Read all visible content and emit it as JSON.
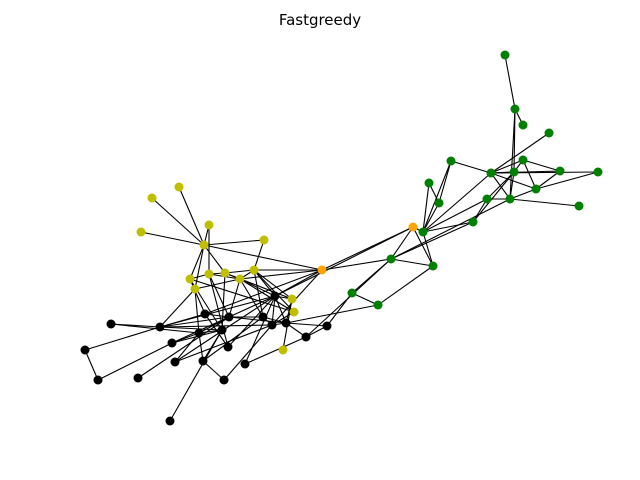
{
  "title": "Fastgreedy",
  "colors": {
    "community_black": "#000000",
    "community_olive": "#bfbf00",
    "community_orange": "#ffa500",
    "community_green": "#008000",
    "edge": "#000000",
    "background": "#ffffff"
  }
}
